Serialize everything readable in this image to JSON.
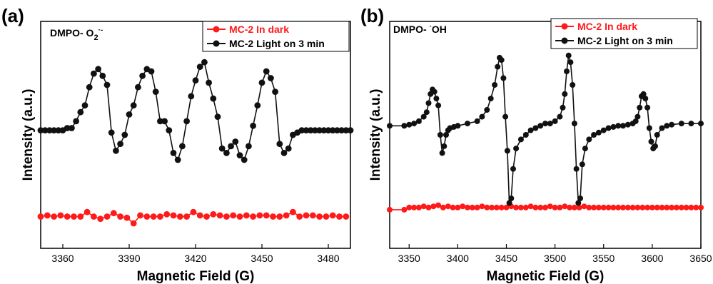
{
  "chart_data": [
    {
      "type": "line",
      "panel_label": "(a)",
      "annotation": {
        "prefix": "DMPO- O",
        "sub": "2",
        "sup": "·-"
      },
      "xlabel": "Magnetic Field (G)",
      "ylabel": "Intensity (a.u.)",
      "xlim": [
        3350,
        3490
      ],
      "ylim": [
        0,
        1
      ],
      "x_ticks": [
        3360,
        3390,
        3420,
        3450,
        3480
      ],
      "legend_position": "top-right",
      "series": [
        {
          "name": "MC-2 In dark",
          "color": "#ff1a1a",
          "x": [
            3350,
            3353,
            3356,
            3359,
            3362,
            3365,
            3368,
            3371,
            3374,
            3377,
            3380,
            3383,
            3386,
            3389,
            3392,
            3395,
            3398,
            3401,
            3404,
            3407,
            3410,
            3413,
            3416,
            3419,
            3422,
            3425,
            3428,
            3431,
            3434,
            3437,
            3440,
            3443,
            3446,
            3449,
            3452,
            3455,
            3458,
            3461,
            3464,
            3467,
            3470,
            3473,
            3476,
            3479,
            3482,
            3485,
            3488
          ],
          "y": [
            0.14,
            0.145,
            0.14,
            0.145,
            0.14,
            0.14,
            0.14,
            0.16,
            0.14,
            0.13,
            0.14,
            0.155,
            0.14,
            0.135,
            0.11,
            0.145,
            0.14,
            0.14,
            0.14,
            0.15,
            0.145,
            0.14,
            0.14,
            0.16,
            0.145,
            0.14,
            0.15,
            0.145,
            0.14,
            0.145,
            0.14,
            0.145,
            0.14,
            0.145,
            0.145,
            0.14,
            0.14,
            0.145,
            0.16,
            0.14,
            0.145,
            0.145,
            0.14,
            0.14,
            0.145,
            0.14,
            0.14
          ]
        },
        {
          "name": "MC-2 Light on 3 min",
          "color": "#111111",
          "x": [
            3350,
            3352,
            3354,
            3356,
            3358,
            3360,
            3362,
            3364,
            3366,
            3368,
            3370,
            3372,
            3374,
            3376,
            3378,
            3380,
            3382,
            3384,
            3386,
            3388,
            3390,
            3392,
            3394,
            3396,
            3398,
            3400,
            3402,
            3404,
            3406,
            3408,
            3410,
            3412,
            3414,
            3416,
            3418,
            3420,
            3422,
            3424,
            3426,
            3428,
            3430,
            3432,
            3434,
            3436,
            3438,
            3440,
            3442,
            3444,
            3446,
            3448,
            3450,
            3452,
            3454,
            3456,
            3458,
            3460,
            3462,
            3464,
            3466,
            3468,
            3470,
            3472,
            3474,
            3476,
            3478,
            3480,
            3482,
            3484,
            3486,
            3488,
            3490
          ],
          "y": [
            0.52,
            0.52,
            0.52,
            0.52,
            0.52,
            0.52,
            0.53,
            0.53,
            0.56,
            0.6,
            0.63,
            0.71,
            0.77,
            0.79,
            0.76,
            0.72,
            0.51,
            0.43,
            0.46,
            0.5,
            0.59,
            0.63,
            0.71,
            0.76,
            0.79,
            0.78,
            0.69,
            0.56,
            0.56,
            0.52,
            0.42,
            0.39,
            0.45,
            0.56,
            0.67,
            0.74,
            0.8,
            0.82,
            0.73,
            0.66,
            0.58,
            0.44,
            0.42,
            0.45,
            0.47,
            0.41,
            0.39,
            0.45,
            0.54,
            0.63,
            0.73,
            0.78,
            0.75,
            0.69,
            0.46,
            0.42,
            0.44,
            0.5,
            0.51,
            0.52,
            0.52,
            0.52,
            0.52,
            0.52,
            0.52,
            0.52,
            0.52,
            0.52,
            0.52,
            0.52,
            0.52
          ]
        }
      ]
    },
    {
      "type": "line",
      "panel_label": "(b)",
      "annotation": {
        "prefix": "DMPO- ",
        "sup": "·",
        "suffix": "OH"
      },
      "xlabel": "Magnetic Field (G)",
      "ylabel": "Intensity (a.u.)",
      "xlim": [
        3330,
        3650
      ],
      "ylim": [
        0,
        1
      ],
      "x_ticks": [
        3350,
        3400,
        3450,
        3500,
        3550,
        3600,
        3650
      ],
      "legend_position": "top-right",
      "series": [
        {
          "name": "MC-2 In dark",
          "color": "#ff1a1a",
          "x": [
            3330,
            3345,
            3350,
            3355,
            3360,
            3365,
            3370,
            3375,
            3380,
            3385,
            3390,
            3395,
            3400,
            3405,
            3410,
            3415,
            3420,
            3425,
            3430,
            3435,
            3440,
            3445,
            3450,
            3455,
            3460,
            3465,
            3470,
            3475,
            3480,
            3485,
            3490,
            3495,
            3500,
            3505,
            3510,
            3515,
            3520,
            3525,
            3530,
            3535,
            3540,
            3545,
            3550,
            3555,
            3560,
            3565,
            3570,
            3575,
            3580,
            3585,
            3590,
            3595,
            3600,
            3605,
            3610,
            3615,
            3620,
            3625,
            3630,
            3635,
            3640,
            3645,
            3650
          ],
          "y": [
            0.17,
            0.17,
            0.18,
            0.18,
            0.18,
            0.185,
            0.18,
            0.185,
            0.19,
            0.18,
            0.185,
            0.18,
            0.18,
            0.185,
            0.18,
            0.18,
            0.18,
            0.185,
            0.18,
            0.18,
            0.18,
            0.18,
            0.18,
            0.185,
            0.18,
            0.18,
            0.18,
            0.185,
            0.18,
            0.18,
            0.18,
            0.185,
            0.18,
            0.18,
            0.185,
            0.18,
            0.18,
            0.18,
            0.185,
            0.18,
            0.18,
            0.18,
            0.18,
            0.18,
            0.18,
            0.18,
            0.18,
            0.18,
            0.18,
            0.18,
            0.18,
            0.18,
            0.18,
            0.18,
            0.18,
            0.18,
            0.18,
            0.18,
            0.18,
            0.18,
            0.18,
            0.18,
            0.18
          ]
        },
        {
          "name": "MC-2 Light on 3 min",
          "color": "#111111",
          "x": [
            3330,
            3345,
            3350,
            3355,
            3360,
            3365,
            3368,
            3370,
            3372,
            3374,
            3376,
            3378,
            3380,
            3382,
            3384,
            3386,
            3388,
            3390,
            3392,
            3396,
            3400,
            3410,
            3420,
            3425,
            3430,
            3434,
            3438,
            3441,
            3443,
            3445,
            3447,
            3449,
            3451,
            3453,
            3455,
            3457,
            3460,
            3465,
            3470,
            3475,
            3480,
            3485,
            3490,
            3495,
            3500,
            3505,
            3508,
            3510,
            3512,
            3514,
            3516,
            3518,
            3520,
            3522,
            3524,
            3526,
            3528,
            3531,
            3535,
            3540,
            3545,
            3550,
            3555,
            3560,
            3565,
            3570,
            3575,
            3580,
            3583,
            3585,
            3587,
            3589,
            3591,
            3593,
            3595,
            3597,
            3599,
            3601,
            3603,
            3605,
            3610,
            3615,
            3620,
            3630,
            3640,
            3650
          ],
          "y": [
            0.54,
            0.54,
            0.545,
            0.55,
            0.56,
            0.58,
            0.6,
            0.64,
            0.68,
            0.7,
            0.69,
            0.66,
            0.63,
            0.5,
            0.42,
            0.45,
            0.5,
            0.52,
            0.53,
            0.535,
            0.54,
            0.55,
            0.56,
            0.58,
            0.61,
            0.66,
            0.72,
            0.8,
            0.84,
            0.83,
            0.75,
            0.58,
            0.43,
            0.2,
            0.22,
            0.35,
            0.44,
            0.48,
            0.5,
            0.52,
            0.53,
            0.54,
            0.55,
            0.55,
            0.56,
            0.58,
            0.62,
            0.68,
            0.78,
            0.85,
            0.82,
            0.72,
            0.55,
            0.35,
            0.2,
            0.22,
            0.37,
            0.44,
            0.48,
            0.5,
            0.51,
            0.52,
            0.53,
            0.535,
            0.54,
            0.54,
            0.545,
            0.55,
            0.56,
            0.58,
            0.62,
            0.67,
            0.68,
            0.66,
            0.62,
            0.53,
            0.47,
            0.44,
            0.45,
            0.5,
            0.53,
            0.54,
            0.545,
            0.55,
            0.55,
            0.55
          ]
        }
      ]
    }
  ]
}
